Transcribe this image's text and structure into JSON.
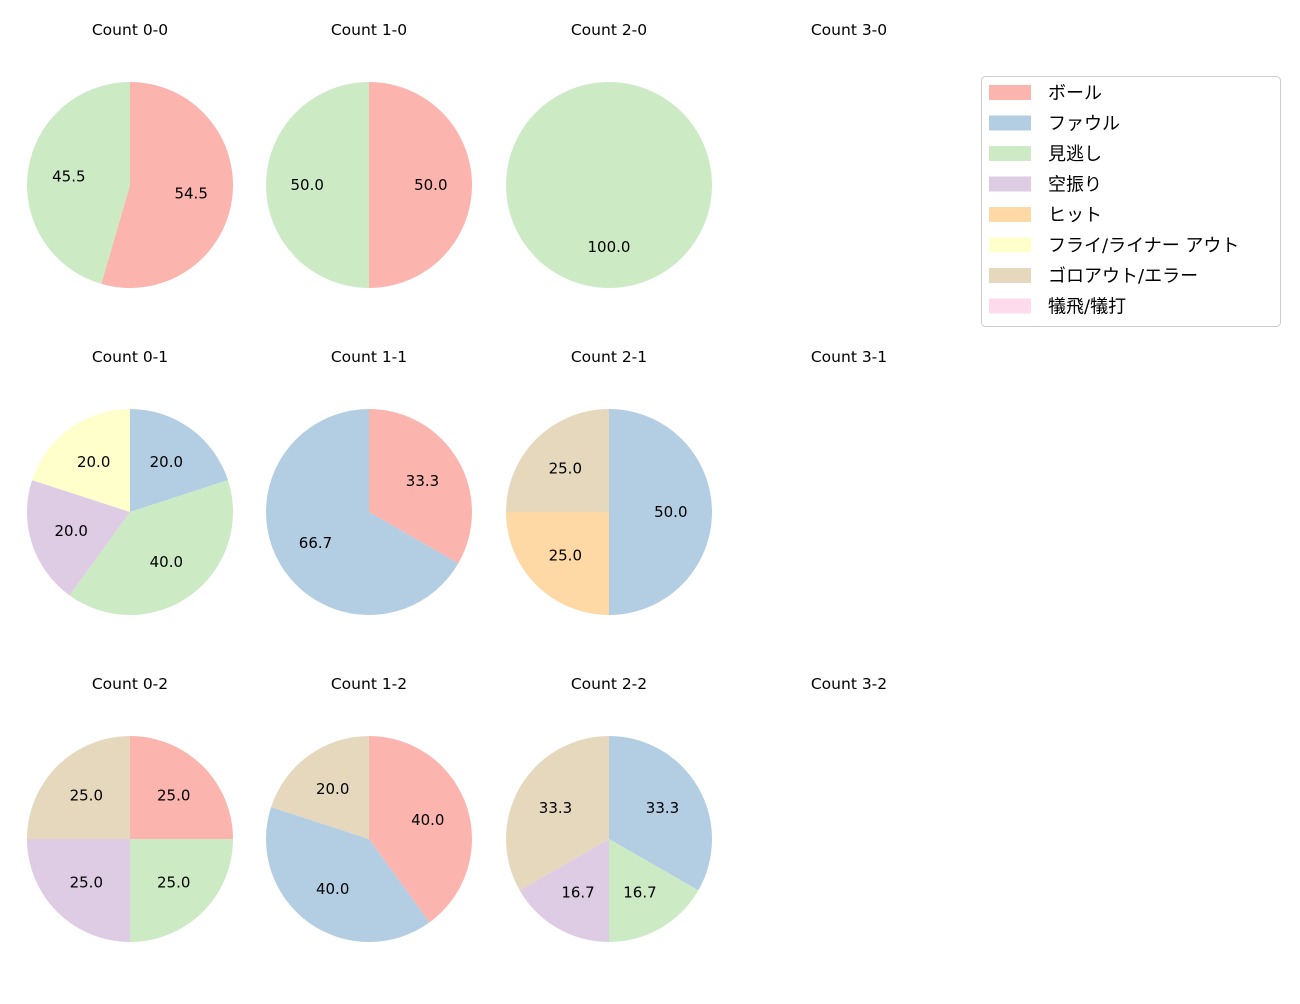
{
  "chart_data": {
    "type": "pie",
    "start_angle": 90,
    "direction": "clockwise",
    "categories": [
      "ボール",
      "ファウル",
      "見逃し",
      "空振り",
      "ヒット",
      "フライ/ライナー アウト",
      "ゴロアウト/エラー",
      "犠飛/犠打"
    ],
    "colors": [
      "#fbb4ae",
      "#b3cde3",
      "#ccebc5",
      "#decbe4",
      "#fed9a6",
      "#ffffcc",
      "#e5d8bd",
      "#fddaec"
    ],
    "legend_position": "top-right",
    "charts": [
      {
        "title": "Count 0-0",
        "values": [
          54.5,
          0,
          45.5,
          0,
          0,
          0,
          0,
          0
        ]
      },
      {
        "title": "Count 1-0",
        "values": [
          50.0,
          0,
          50.0,
          0,
          0,
          0,
          0,
          0
        ]
      },
      {
        "title": "Count 2-0",
        "values": [
          0,
          0,
          100.0,
          0,
          0,
          0,
          0,
          0
        ]
      },
      {
        "title": "Count 3-0",
        "values": []
      },
      {
        "title": "Count 0-1",
        "values": [
          0,
          20.0,
          40.0,
          20.0,
          0,
          20.0,
          0,
          0
        ]
      },
      {
        "title": "Count 1-1",
        "values": [
          33.3,
          66.7,
          0,
          0,
          0,
          0,
          0,
          0
        ]
      },
      {
        "title": "Count 2-1",
        "values": [
          0,
          50.0,
          0,
          0,
          25.0,
          0,
          25.0,
          0
        ]
      },
      {
        "title": "Count 3-1",
        "values": []
      },
      {
        "title": "Count 0-2",
        "values": [
          25.0,
          0,
          25.0,
          25.0,
          0,
          0,
          25.0,
          0
        ]
      },
      {
        "title": "Count 1-2",
        "values": [
          40.0,
          40.0,
          0,
          0,
          0,
          0,
          20.0,
          0
        ]
      },
      {
        "title": "Count 2-2",
        "values": [
          0,
          33.3,
          16.7,
          16.7,
          0,
          0,
          33.3,
          0
        ]
      },
      {
        "title": "Count 3-2",
        "values": []
      }
    ]
  }
}
